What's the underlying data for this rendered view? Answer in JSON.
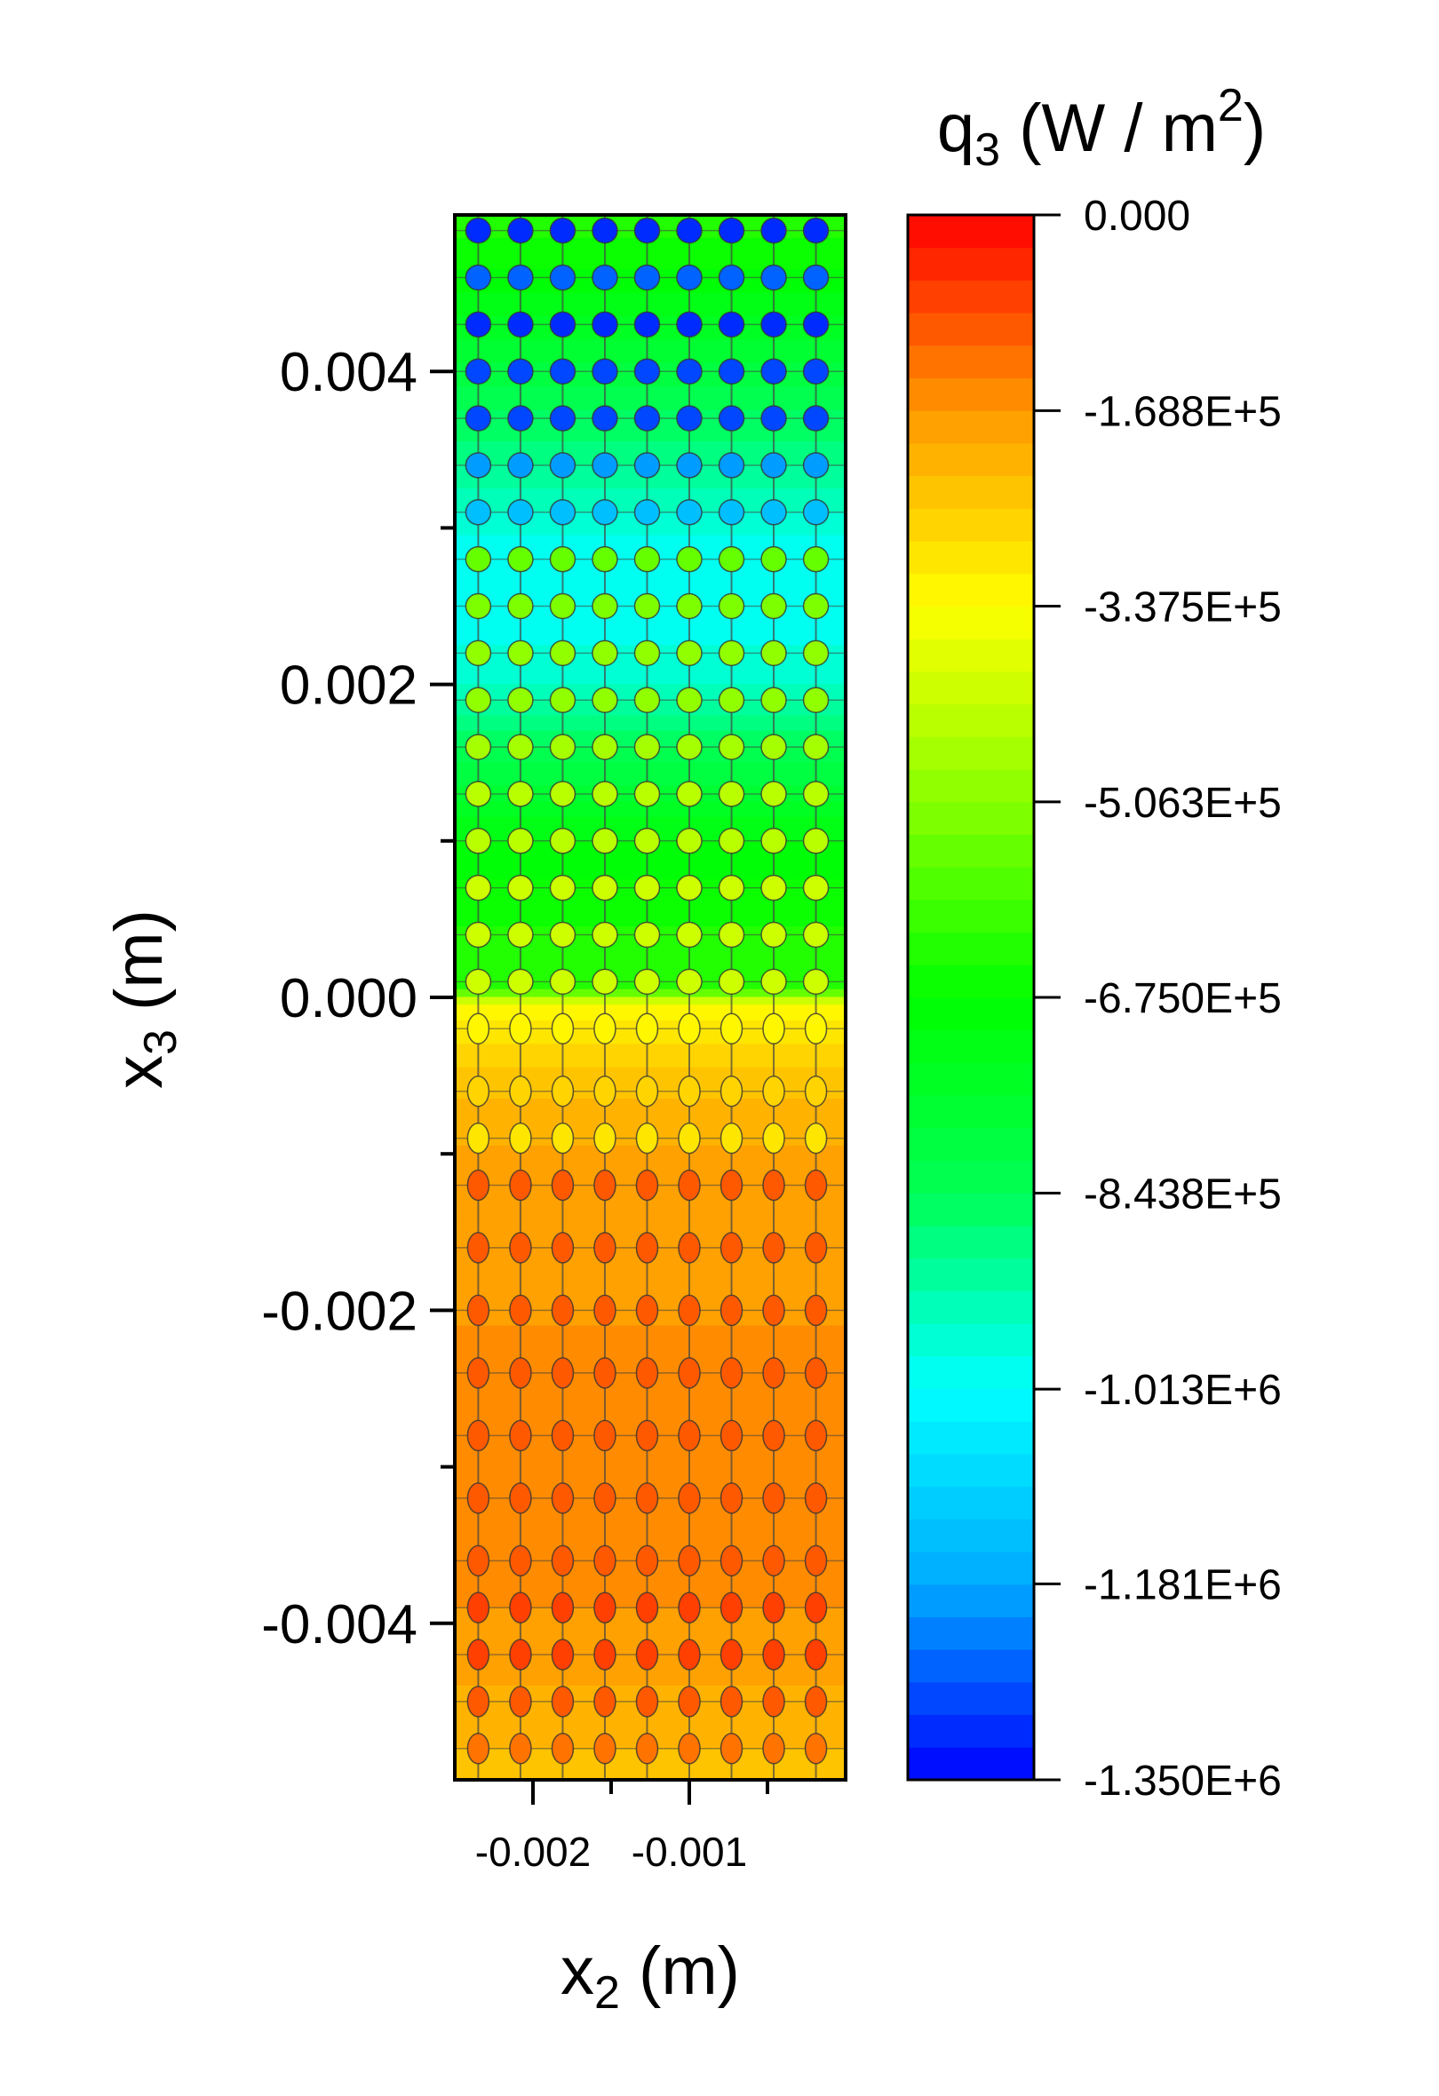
{
  "chart_data": {
    "type": "heatmap",
    "title": "",
    "xlabel": {
      "main": "x",
      "sub": "2",
      "unit": " (m)"
    },
    "ylabel": {
      "main": "x",
      "sub": "3",
      "unit": " (m)"
    },
    "xlim": [
      -0.0025,
      0.0
    ],
    "ylim": [
      -0.005,
      0.005
    ],
    "x_ticks": [
      {
        "value": -0.002,
        "label": "-0.002"
      },
      {
        "value": -0.001,
        "label": "-0.001"
      }
    ],
    "x_minor_ticks": [
      -0.0015,
      -0.0005
    ],
    "y_ticks": [
      {
        "value": 0.004,
        "label": "0.004"
      },
      {
        "value": 0.002,
        "label": "0.002"
      },
      {
        "value": 0.0,
        "label": "0.000"
      },
      {
        "value": -0.002,
        "label": "-0.002"
      },
      {
        "value": -0.004,
        "label": "-0.004"
      }
    ],
    "y_minor_ticks": [
      0.003,
      0.001,
      -0.001,
      -0.003
    ],
    "colorbar": {
      "title": {
        "main": "q",
        "sub": "3",
        "unit_pre": " (W / m",
        "unit_sup": "2",
        "unit_post": ")"
      },
      "min": -1350000,
      "max": 0,
      "levels": 48,
      "ticks": [
        {
          "value": 0,
          "label": "0.000"
        },
        {
          "value": -168800,
          "label": "-1.688E+5"
        },
        {
          "value": -337500,
          "label": "-3.375E+5"
        },
        {
          "value": -506300,
          "label": "-5.063E+5"
        },
        {
          "value": -675000,
          "label": "-6.750E+5"
        },
        {
          "value": -843800,
          "label": "-8.438E+5"
        },
        {
          "value": -1013000,
          "label": "-1.013E+6"
        },
        {
          "value": -1181000,
          "label": "-1.181E+6"
        },
        {
          "value": -1350000,
          "label": "-1.350E+6"
        }
      ],
      "colors": [
        "#0000ff",
        "#00aaff",
        "#00ffff",
        "#00ff55",
        "#00ff00",
        "#88ff00",
        "#ffff00",
        "#ff9900",
        "#ff0000"
      ]
    },
    "field_profile": {
      "x3": [
        0.005,
        0.0045,
        0.004,
        0.0035,
        0.003,
        0.0025,
        0.002,
        0.0015,
        0.001,
        0.0005,
        5e-05,
        -5e-05,
        -0.0005,
        -0.001,
        -0.002,
        -0.003,
        -0.004,
        -0.005
      ],
      "q3_mean": [
        -620000,
        -700000,
        -800000,
        -880000,
        -980000,
        -1010000,
        -960000,
        -820000,
        -700000,
        -650000,
        -620000,
        -330000,
        -240000,
        -190000,
        -170000,
        -160000,
        -170000,
        -240000
      ]
    },
    "markers": {
      "rows_top": [
        0.0049,
        0.0046,
        0.0043,
        0.004,
        0.0037,
        0.0034,
        0.0031,
        0.0028,
        0.0025,
        0.0022,
        0.0019,
        0.0016,
        0.0013,
        0.001,
        0.0007,
        0.0004,
        0.0001
      ],
      "q3_top": [
        -1320000,
        -1250000,
        -1300000,
        -1280000,
        -1270000,
        -1200000,
        -1150000,
        -560000,
        -520000,
        -500000,
        -480000,
        -470000,
        -450000,
        -440000,
        -420000,
        -410000,
        -400000
      ],
      "rows_bottom": [
        -0.0002,
        -0.0006,
        -0.0009,
        -0.0012,
        -0.0016,
        -0.002,
        -0.0024,
        -0.0028,
        -0.0032,
        -0.0036,
        -0.0039,
        -0.0042,
        -0.0045,
        -0.0048
      ],
      "q3_bottom": [
        -330000,
        -260000,
        -300000,
        -100000,
        -110000,
        -90000,
        -100000,
        -95000,
        -90000,
        -100000,
        -80000,
        -70000,
        -90000,
        -120000
      ],
      "columns": [
        -0.00235,
        -0.00208,
        -0.00181,
        -0.00154,
        -0.00127,
        -0.001,
        -0.00073,
        -0.00046,
        -0.00019
      ]
    }
  }
}
